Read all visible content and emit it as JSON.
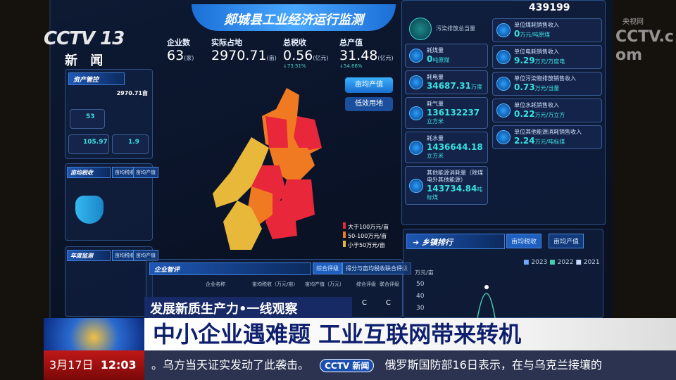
{
  "dashboard": {
    "title": "郯城县工业经济运行监测",
    "kpis": [
      {
        "label": "企业数",
        "value": "63",
        "unit": "(家)"
      },
      {
        "label": "实际占地",
        "value": "2970.71",
        "unit": "(亩)"
      },
      {
        "label": "总税收",
        "value": "0.56",
        "unit": "(亿元)",
        "change": "73.51%",
        "change_dir": "down"
      },
      {
        "label": "总产值",
        "value": "31.48",
        "unit": "(亿元)",
        "change": "54.66%",
        "change_dir": "down"
      }
    ],
    "map_buttons": [
      "亩均产值",
      "低效用地"
    ],
    "map_legend": [
      {
        "label": "大于100万元/亩",
        "color": "#e8283a"
      },
      {
        "label": "50-100万元/亩",
        "color": "#f07a22"
      },
      {
        "label": "小于50万元/亩",
        "color": "#e8b83a"
      }
    ],
    "left": {
      "section1": "资产管控",
      "land_value": "2970.71亩",
      "stat1": "53",
      "stat2": "105.97",
      "stat3": "1.9",
      "section2": "亩均税收",
      "section2_tabs": [
        "亩均税收",
        "亩均产值"
      ],
      "section3": "年度监测",
      "section3_tabs": [
        "亩均税收",
        "亩均产值"
      ]
    },
    "energy": {
      "header_value": "439199",
      "pollution_label": "污染排放总当量",
      "cards_left": [
        {
          "label": "耗煤量",
          "value": "0",
          "unit": "吨原煤"
        },
        {
          "label": "耗电量",
          "value": "34687.31",
          "unit": "万度"
        },
        {
          "label": "耗气量",
          "value": "136132237",
          "unit": "立方米"
        },
        {
          "label": "耗水量",
          "value": "1436644.18",
          "unit": "立方米"
        },
        {
          "label": "其他能源消耗量（除煤电外其他能源）",
          "value": "143734.84",
          "unit": "吨标煤"
        }
      ],
      "cards_right": [
        {
          "label": "单位煤耗销售收入",
          "value": "0",
          "unit": "万元/吨原煤"
        },
        {
          "label": "单位电耗销售收入",
          "value": "9.29",
          "unit": "万元/万度电"
        },
        {
          "label": "单位污染物排放销售收入",
          "value": "0.73",
          "unit": "万元/当量"
        },
        {
          "label": "单位水耗销售收入",
          "value": "0.22",
          "unit": "万元/万立方"
        },
        {
          "label": "单位其他能源消耗销售收入",
          "value": "2.24",
          "unit": "万元/吨标煤"
        }
      ]
    },
    "ranking": {
      "title": "乡镇排行",
      "tabs": [
        "亩均税收",
        "亩均产值"
      ],
      "legend": [
        {
          "label": "2023",
          "color": "#6fa8ff"
        },
        {
          "label": "2022",
          "color": "#3fd0b0"
        },
        {
          "label": "2021",
          "color": "#c8d8ff"
        }
      ],
      "y_unit": "万元/亩",
      "y_ticks": [
        "50",
        "40",
        "30"
      ]
    },
    "enterprise": {
      "title": "企业智评",
      "tabs": [
        "综合评级",
        "得分与亩均税收联合评级"
      ],
      "columns": [
        "企业名称",
        "亩均税收（万元/亩）",
        "亩均产值（万元）",
        "综合评级",
        "联合评级"
      ],
      "row": [
        "C",
        "C"
      ]
    }
  },
  "broadcast": {
    "channel_logo": "CCTV 13",
    "channel_name": "新 闻",
    "watermark": "CCTV.com",
    "watermark_sub": "央视网",
    "segment": "发展新质生产力•一线观察",
    "headline": "中小企业遇难题 工业互联网带来转机",
    "date": "3月17日",
    "time": "12:03",
    "ticker": [
      "。乌方当天证实发动了此袭击。",
      "俄罗斯国防部16日表示，在与乌克兰接壤的"
    ],
    "ticker_logo": "CCTV 新闻"
  }
}
